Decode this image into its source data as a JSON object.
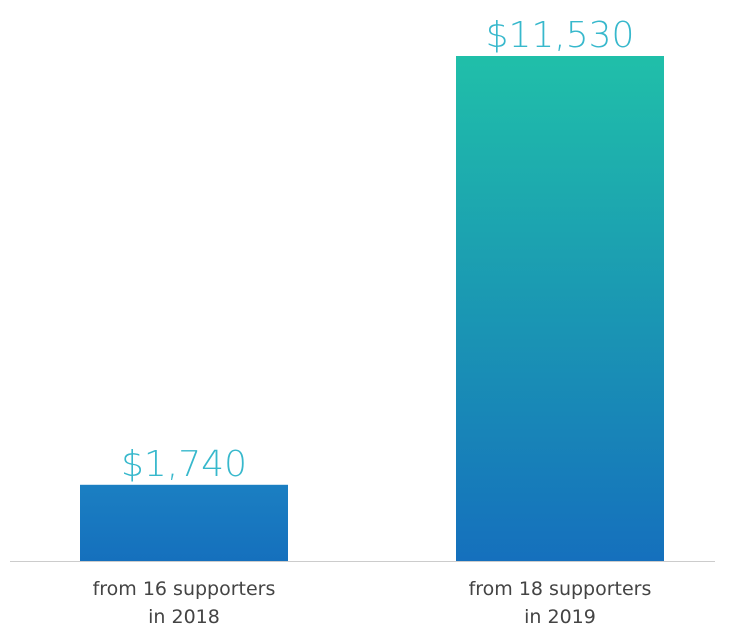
{
  "chart_data": {
    "type": "bar",
    "categories": [
      [
        "from 16 supporters",
        "in 2018"
      ],
      [
        "from 18 supporters",
        "in 2019"
      ]
    ],
    "values": [
      1740,
      11530
    ],
    "data_labels": [
      "$1,740",
      "$11,530"
    ],
    "title": "",
    "xlabel": "",
    "ylabel": "",
    "ylim": [
      0,
      11530
    ],
    "grid": false,
    "legend": "none",
    "colors": {
      "bar_top_2019": "#20bfa9",
      "bar_bottom": "#1570bd",
      "bar_2018_top": "#1b7fc2",
      "value_label": "#37b8cc",
      "category_label": "#444444",
      "axis": "#cccccc"
    }
  }
}
